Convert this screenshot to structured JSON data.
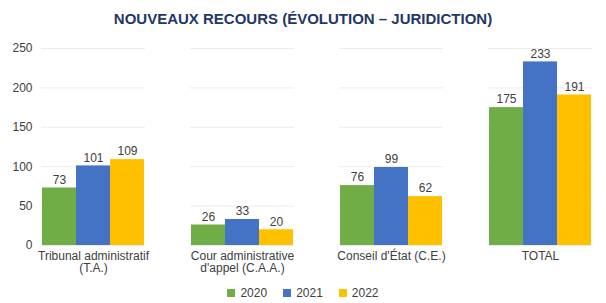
{
  "chart_data": {
    "type": "bar",
    "title": "NOUVEAUX RECOURS (ÉVOLUTION – JURIDICTION)",
    "categories": [
      "Tribunal administratif\n(T.A.)",
      "Cour administrative\nd'appel (C.A.A.)",
      "Conseil d'État (C.E.)",
      "TOTAL"
    ],
    "series": [
      {
        "name": "2020",
        "color": "#70ad47",
        "values": [
          73,
          26,
          76,
          175
        ]
      },
      {
        "name": "2021",
        "color": "#4472c4",
        "values": [
          101,
          33,
          99,
          233
        ]
      },
      {
        "name": "2022",
        "color": "#ffc000",
        "values": [
          109,
          20,
          62,
          191
        ]
      }
    ],
    "ylim": [
      0,
      250
    ],
    "yticks": [
      0,
      50,
      100,
      150,
      200,
      250
    ],
    "grid": true,
    "data_labels": true,
    "legend": "bottom"
  }
}
